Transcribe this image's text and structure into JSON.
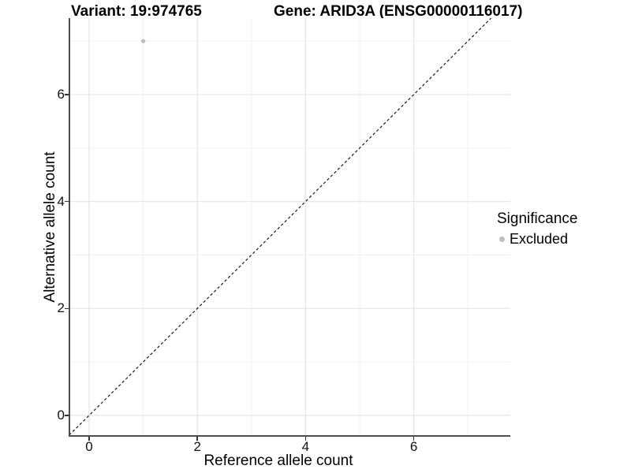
{
  "chart_data": {
    "type": "scatter",
    "title_left": "Variant: 19:974765",
    "title_right": "Gene: ARID3A (ENSG00000116017)",
    "xlabel": "Reference allele count",
    "ylabel": "Alternative allele count",
    "xlim": [
      -0.35,
      7.785
    ],
    "ylim": [
      -0.37,
      7.43
    ],
    "x_ticks": [
      0,
      2,
      4,
      6
    ],
    "y_ticks": [
      0,
      2,
      4,
      6
    ],
    "x_minor_gridlines": [
      1,
      3,
      5,
      7
    ],
    "y_minor_gridlines": [
      1,
      3,
      5,
      7
    ],
    "grid": true,
    "series": [
      {
        "name": "Excluded",
        "color": "#bdbdbd",
        "points": [
          {
            "x": 1,
            "y": 7
          }
        ]
      }
    ],
    "reference_line": {
      "style": "dashed",
      "x1": -0.37,
      "y1": -0.37,
      "x2": 7.43,
      "y2": 7.43,
      "color": "#1a1a1a"
    },
    "legend": {
      "title": "Significance",
      "position": "right",
      "entries": [
        {
          "label": "Excluded",
          "color": "#bdbdbd"
        }
      ]
    }
  },
  "colors": {
    "grid_major": "#e6e6e6",
    "grid_minor": "#f1f1f1",
    "axis_line": "#4d4d4d",
    "tick_mark": "#333333",
    "point": "#bdbdbd",
    "text": "#000000"
  }
}
